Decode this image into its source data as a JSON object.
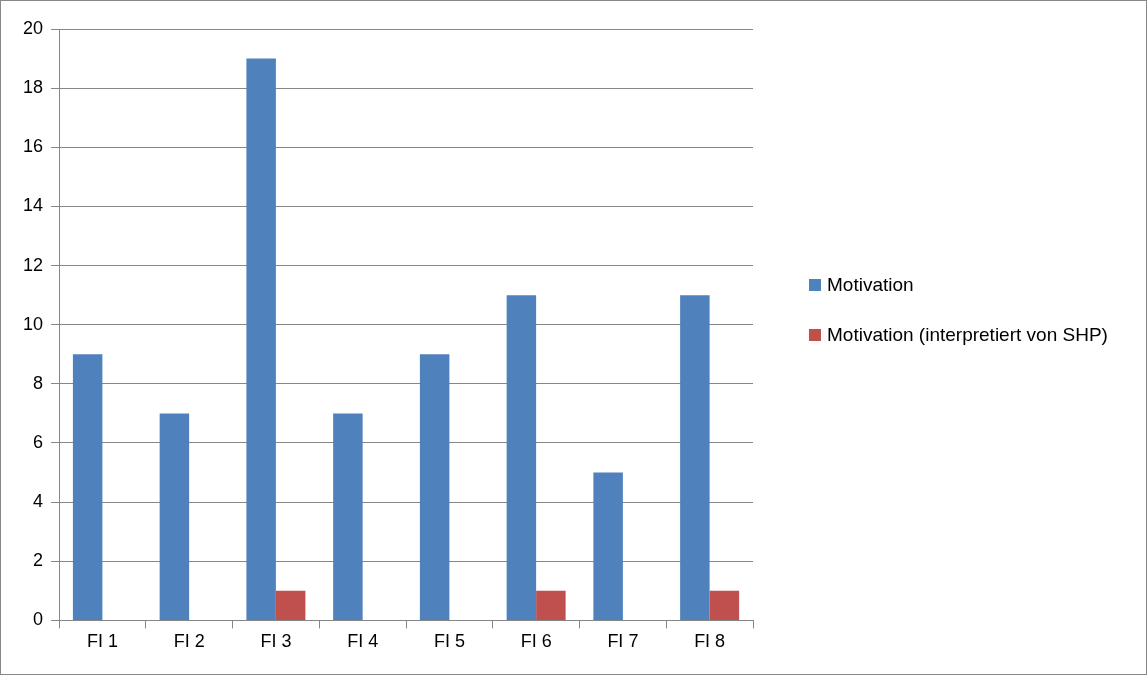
{
  "chart_data": {
    "type": "bar",
    "categories": [
      "FI 1",
      "FI 2",
      "FI 3",
      "FI 4",
      "FI 5",
      "FI 6",
      "FI 7",
      "FI 8"
    ],
    "series": [
      {
        "name": "Motivation",
        "color": "#4f81bd",
        "values": [
          9,
          7,
          19,
          7,
          9,
          11,
          5,
          11
        ]
      },
      {
        "name": "Motivation (interpretiert von SHP)",
        "color": "#c0504d",
        "values": [
          0,
          0,
          1,
          0,
          0,
          1,
          0,
          1
        ]
      }
    ],
    "ylim": [
      0,
      20
    ],
    "yticks": [
      0,
      2,
      4,
      6,
      8,
      10,
      12,
      14,
      16,
      18,
      20
    ],
    "grid": "y",
    "legend": "right"
  }
}
